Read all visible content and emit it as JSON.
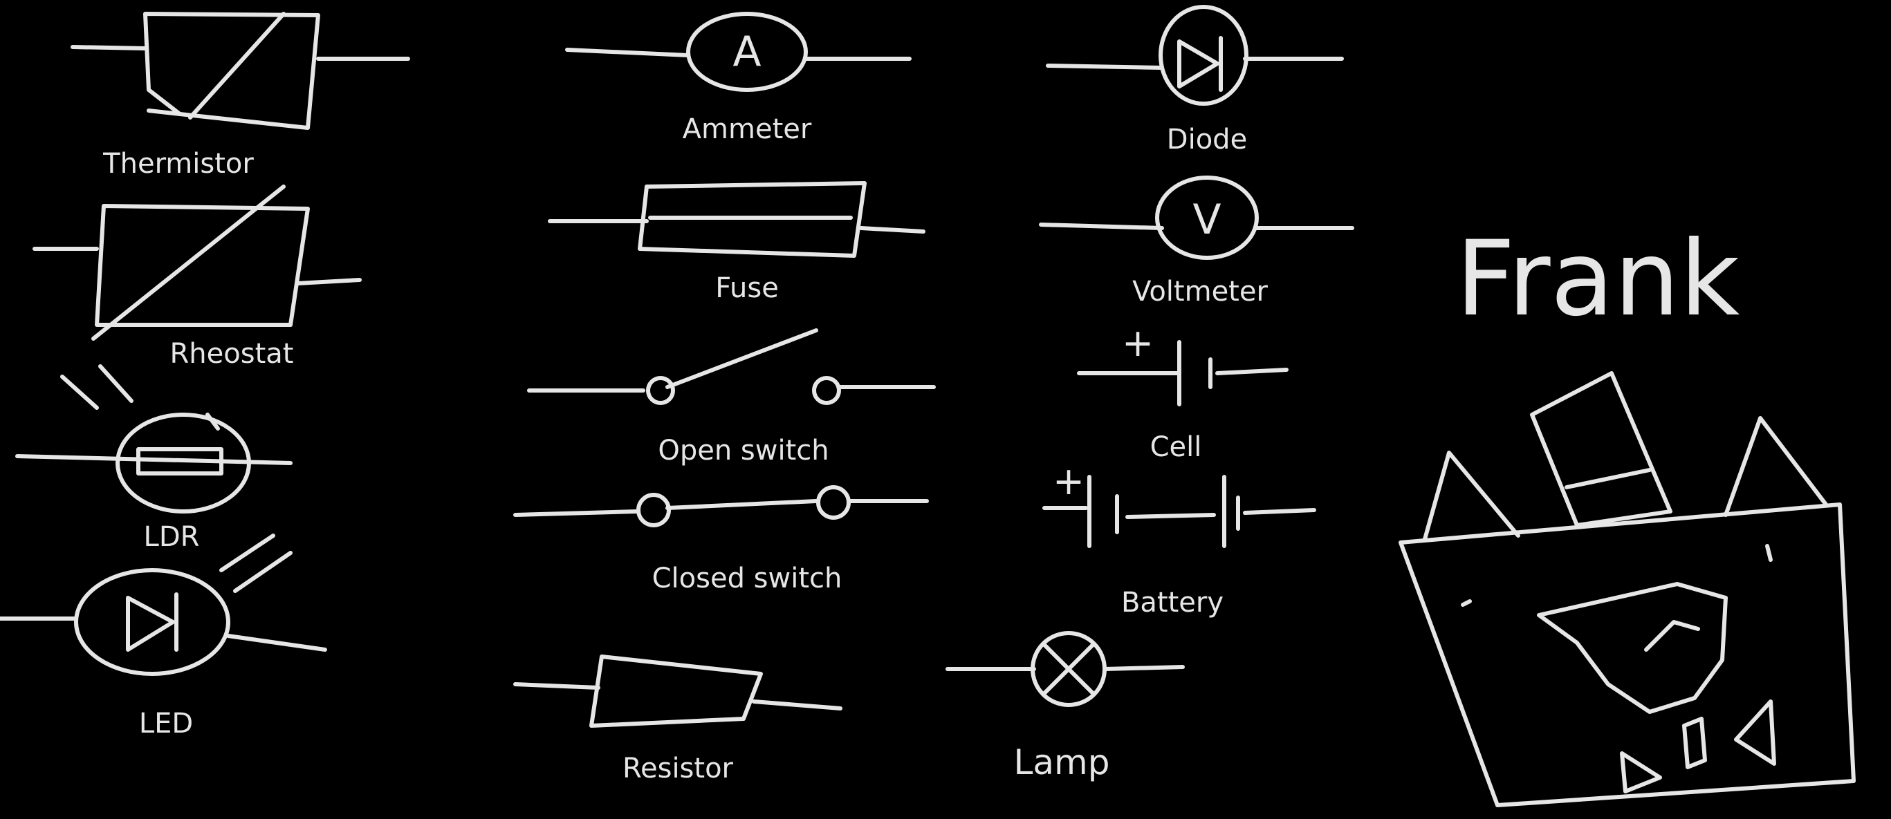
{
  "labels": {
    "thermistor": "Thermistor",
    "rheostat": "Rheostat",
    "ldr": "LDR",
    "led": "LED",
    "ammeter": "Ammeter",
    "fuse": "Fuse",
    "open_switch": "Open switch",
    "closed_switch": "Closed switch",
    "resistor": "Resistor",
    "diode": "Diode",
    "voltmeter": "Voltmeter",
    "cell": "Cell",
    "battery": "Battery",
    "lamp": "Lamp",
    "ammeter_letter": "A",
    "voltmeter_letter": "V",
    "plus": "+"
  },
  "title": "Frank"
}
